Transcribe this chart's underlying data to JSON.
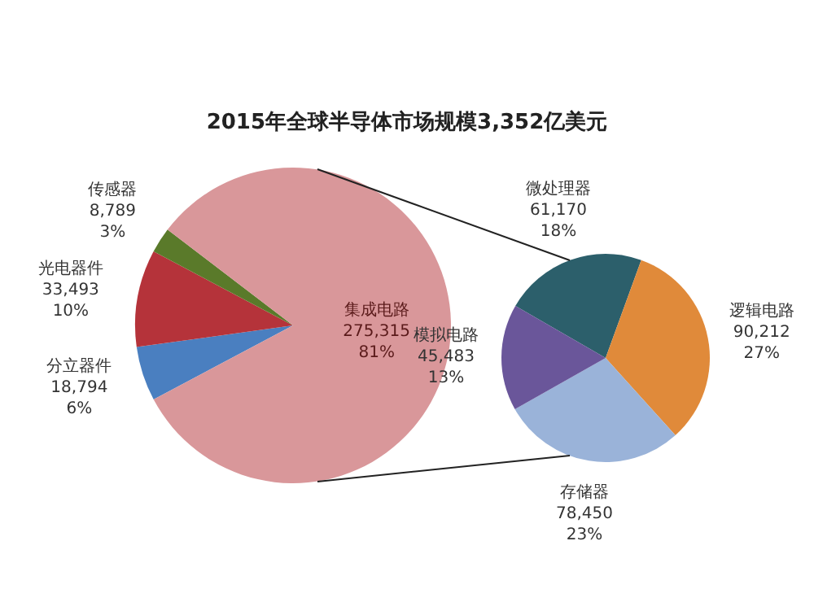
{
  "chart_data": [
    {
      "type": "pie",
      "title": "2015年全球半导体市场规模3,352亿美元",
      "categories": [
        "分立器件",
        "光电器件",
        "传感器",
        "集成电路"
      ],
      "values": [
        18794,
        33493,
        8789,
        275315
      ],
      "colors": [
        "#4a7fc0",
        "#b5333a",
        "#5a7a2a",
        "#d9979a"
      ],
      "value_labels": [
        "18,794\n6%",
        "33,493\n10%",
        "8,789\n3%",
        "275,315\n81%"
      ]
    },
    {
      "type": "pie",
      "categories": [
        "微处理器",
        "逻辑电路",
        "存储器",
        "模拟电路"
      ],
      "values": [
        61170,
        90212,
        78450,
        45483
      ],
      "colors": [
        "#2c5f6b",
        "#e08a3a",
        "#9ab3d9",
        "#6a569a"
      ],
      "value_labels": [
        "61,170\n18%",
        "90,212\n27%",
        "78,450\n23%",
        "45,483\n13%"
      ]
    }
  ]
}
